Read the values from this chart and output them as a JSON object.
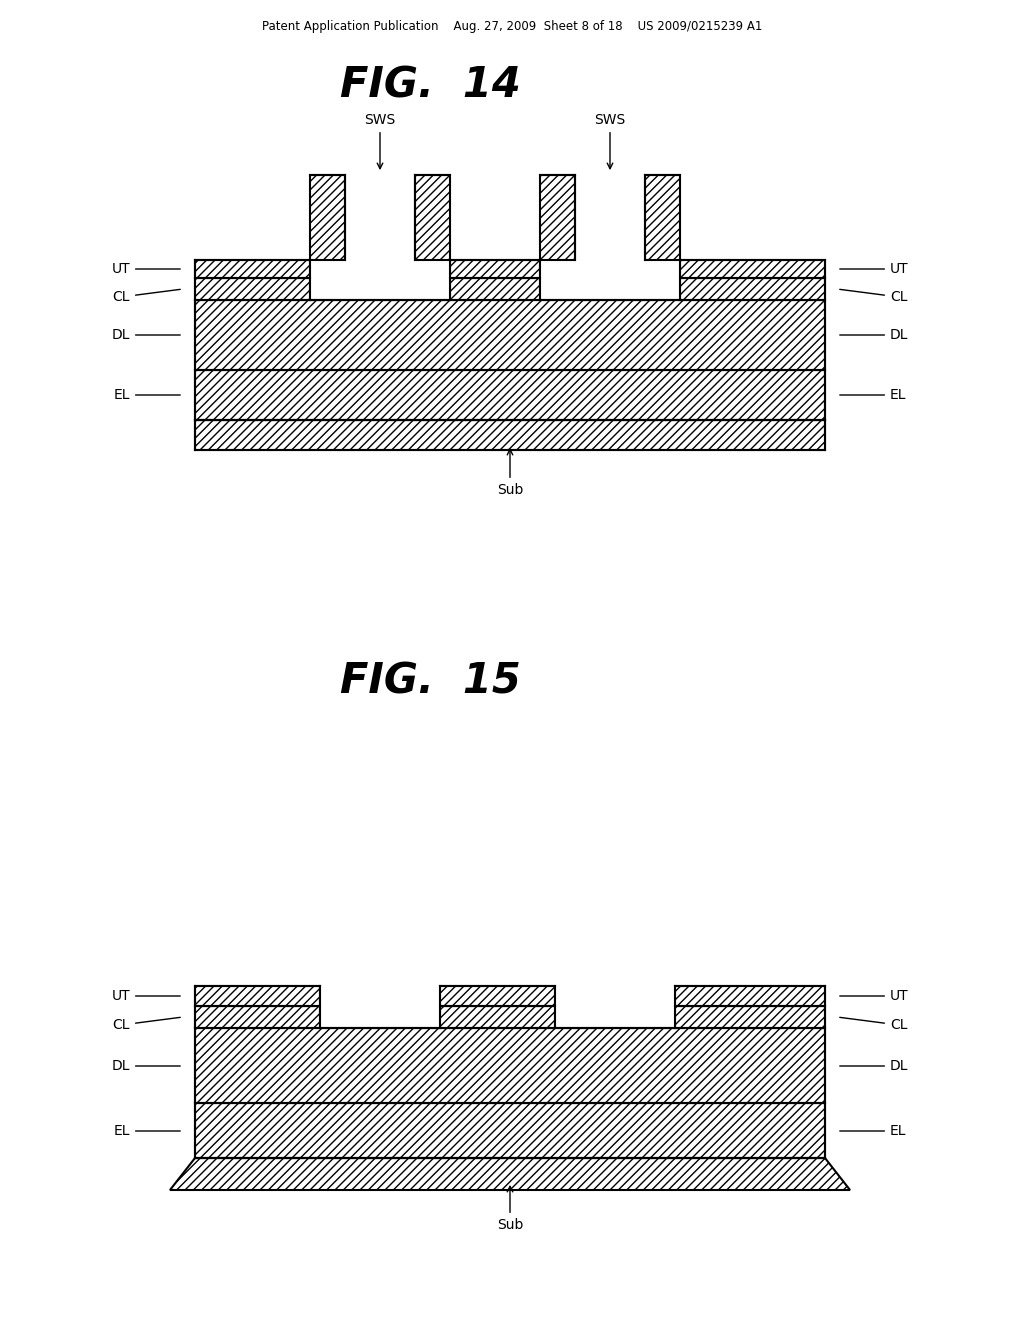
{
  "background_color": "#ffffff",
  "header_text": "Patent Application Publication    Aug. 27, 2009  Sheet 8 of 18    US 2009/0215239 A1",
  "fig14_title": "FIG.  14",
  "fig15_title": "FIG.  15"
}
